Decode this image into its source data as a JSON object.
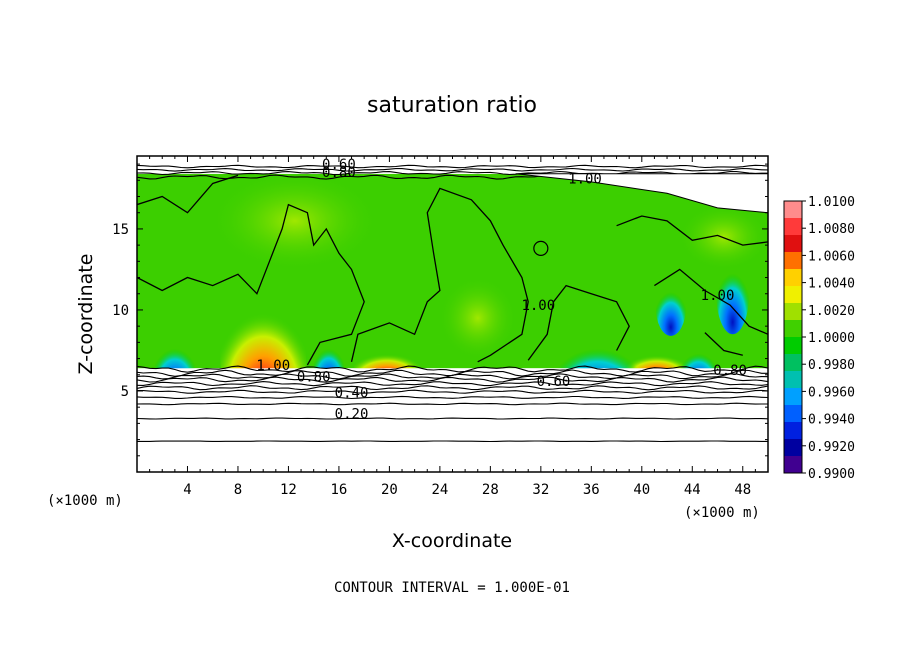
{
  "chart_data": {
    "type": "heatmap",
    "title": "saturation ratio",
    "xlabel": "X-coordinate",
    "ylabel": "Z-coordinate",
    "x_unit": "(×1000 m)",
    "z_unit": "(×1000 m)",
    "xlim": [
      0,
      50
    ],
    "ylim": [
      0,
      19.5
    ],
    "x_ticks": [
      4,
      8,
      12,
      16,
      20,
      24,
      28,
      32,
      36,
      40,
      44,
      48
    ],
    "y_ticks": [
      5,
      10,
      15
    ],
    "colorbar": {
      "range": [
        0.99,
        1.01
      ],
      "ticks": [
        "1.0100",
        "1.0080",
        "1.0060",
        "1.0040",
        "1.0020",
        "1.0000",
        "0.9980",
        "0.9960",
        "0.9940",
        "0.9920",
        "0.9900"
      ],
      "colors": [
        "#ff8c8c",
        "#ff3a3a",
        "#e01010",
        "#ff7000",
        "#ffd000",
        "#f0f000",
        "#a0e000",
        "#40d000",
        "#00cc00",
        "#00c060",
        "#00c0b0",
        "#00a0ff",
        "#0060ff",
        "#0020e0",
        "#0000a0",
        "#400090"
      ]
    },
    "contour_labels": [
      {
        "text": "0.60",
        "x": 16.0,
        "z": 18.7
      },
      {
        "text": "0.80",
        "x": 16.0,
        "z": 18.2
      },
      {
        "text": "1.00",
        "x": 35.5,
        "z": 17.8
      },
      {
        "text": "1.00",
        "x": 10.8,
        "z": 6.3
      },
      {
        "text": "0.80",
        "x": 14.0,
        "z": 5.6
      },
      {
        "text": "0.60",
        "x": 33.0,
        "z": 5.3
      },
      {
        "text": "0.40",
        "x": 17.0,
        "z": 4.6
      },
      {
        "text": "0.20",
        "x": 17.0,
        "z": 3.3
      },
      {
        "text": "1.00",
        "x": 31.8,
        "z": 10.0
      },
      {
        "text": "1.00",
        "x": 46.0,
        "z": 10.6
      },
      {
        "text": "0.80",
        "x": 47.0,
        "z": 6.0
      }
    ],
    "contour_interval_text": "CONTOUR INTERVAL = 1.000E-01",
    "grid": false,
    "legend": "right"
  }
}
